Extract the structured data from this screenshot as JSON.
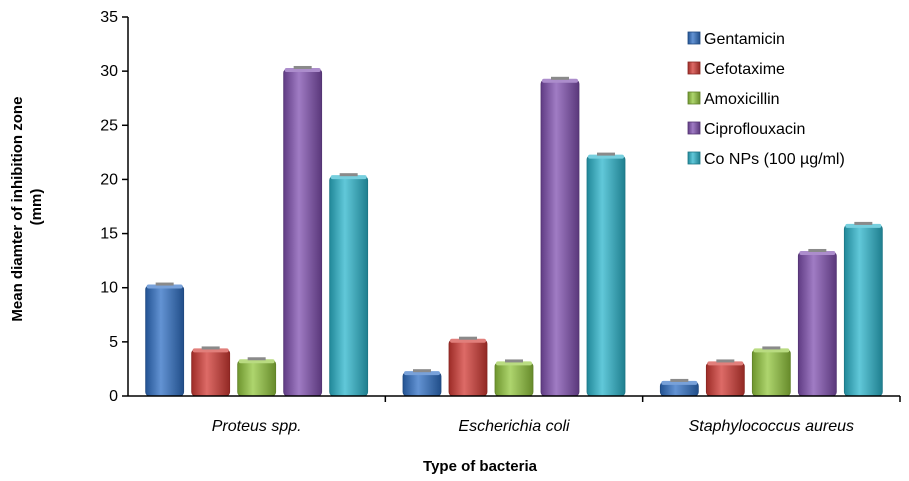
{
  "chart_data": {
    "type": "bar",
    "categories": [
      "Proteus spp.",
      "Escherichia coli",
      "Staphylococcus aureus"
    ],
    "series": [
      {
        "name": "Gentamicin",
        "values": [
          10.2,
          2.2,
          1.3
        ],
        "color": "#2f6fc4"
      },
      {
        "name": "Cefotaxime",
        "values": [
          4.3,
          5.2,
          3.1
        ],
        "color": "#d13a34"
      },
      {
        "name": "Amoxicillin",
        "values": [
          3.3,
          3.1,
          4.3
        ],
        "color": "#93c73d"
      },
      {
        "name": "Ciproflouxacin",
        "values": [
          30.2,
          29.2,
          13.3
        ],
        "color": "#8050b0"
      },
      {
        "name": "Co NPs (100 µg/ml)",
        "values": [
          20.3,
          22.2,
          15.8
        ],
        "color": "#2cb5cc"
      }
    ],
    "xlabel": "Type of bacteria",
    "ylabel": [
      "Mean diamter of inhibition zone",
      "(mm)"
    ],
    "ylim": [
      0,
      35
    ],
    "yticks": [
      "0",
      "5",
      "10",
      "15",
      "20",
      "25",
      "30",
      "35"
    ],
    "legend_position": "top-right",
    "grid": false,
    "error_bars": true
  }
}
